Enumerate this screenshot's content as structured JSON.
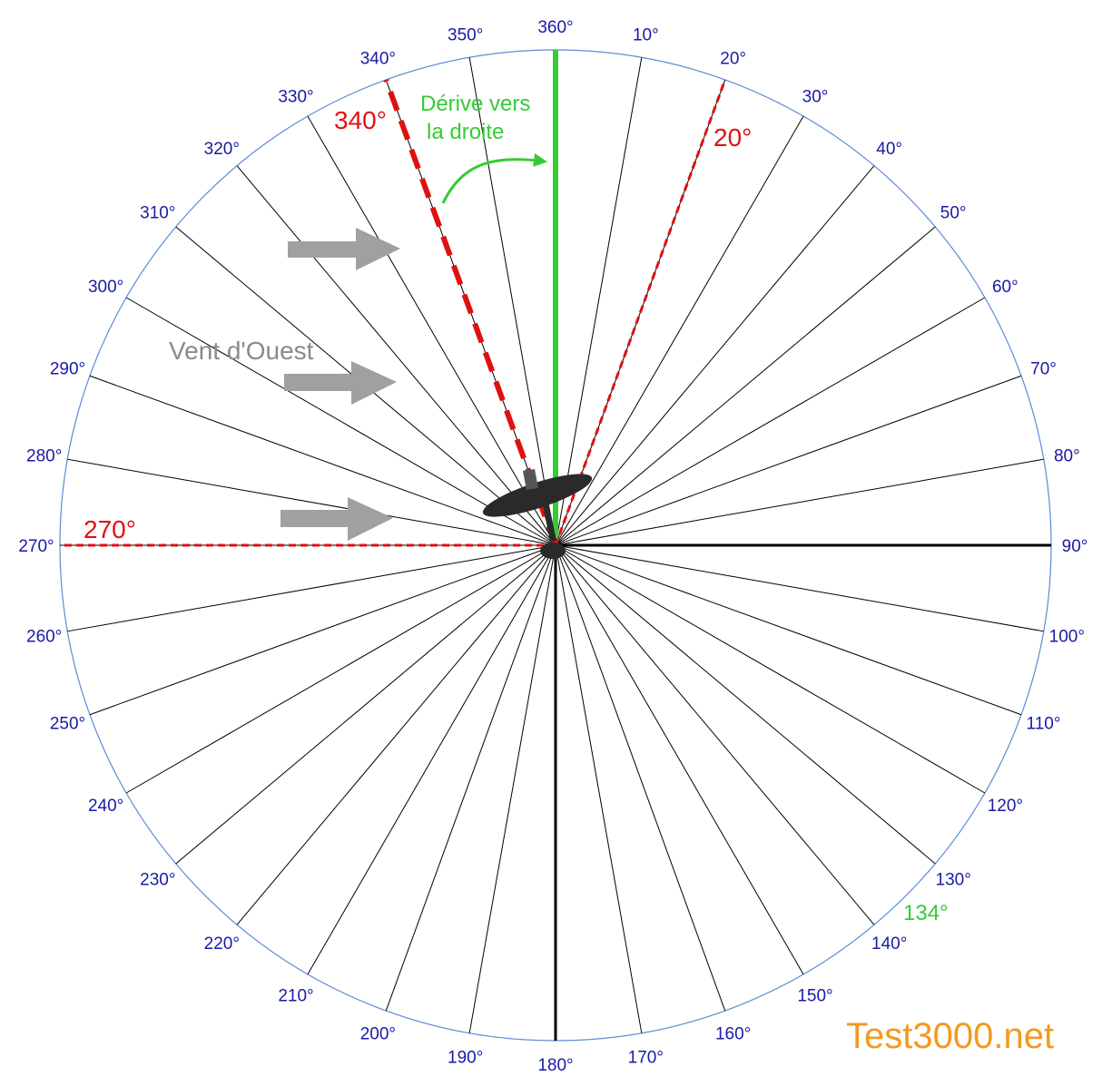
{
  "compass": {
    "ticks": [
      "360°",
      "10°",
      "20°",
      "30°",
      "40°",
      "50°",
      "60°",
      "70°",
      "80°",
      "90°",
      "100°",
      "110°",
      "120°",
      "130°",
      "140°",
      "150°",
      "160°",
      "170°",
      "180°",
      "190°",
      "200°",
      "210°",
      "220°",
      "230°",
      "240°",
      "250°",
      "260°",
      "270°",
      "280°",
      "290°",
      "300°",
      "310°",
      "320°",
      "330°",
      "340°",
      "350°"
    ],
    "heavy_axes_deg": [
      90,
      180
    ],
    "colors": {
      "circle": "#5b8dd6",
      "lines": "#000000",
      "tick_text": "#1a1aa6"
    }
  },
  "headings": {
    "course_deg": 360,
    "course_color": "#33cc33",
    "dashed_deg": [
      340,
      20,
      270
    ],
    "dashed_color": "#e01010",
    "labels": {
      "h340": "340°",
      "h20": "20°",
      "h270": "270°"
    }
  },
  "drift": {
    "line1": "Dérive vers",
    "line2": "la droite",
    "color": "#33cc33"
  },
  "wind": {
    "label": "Vent d'Ouest",
    "arrow_count": 3,
    "color": "#a0a0a0"
  },
  "annotation_134": "134°",
  "brand": {
    "text": "Test3000.net",
    "color": "#f39a1e"
  }
}
